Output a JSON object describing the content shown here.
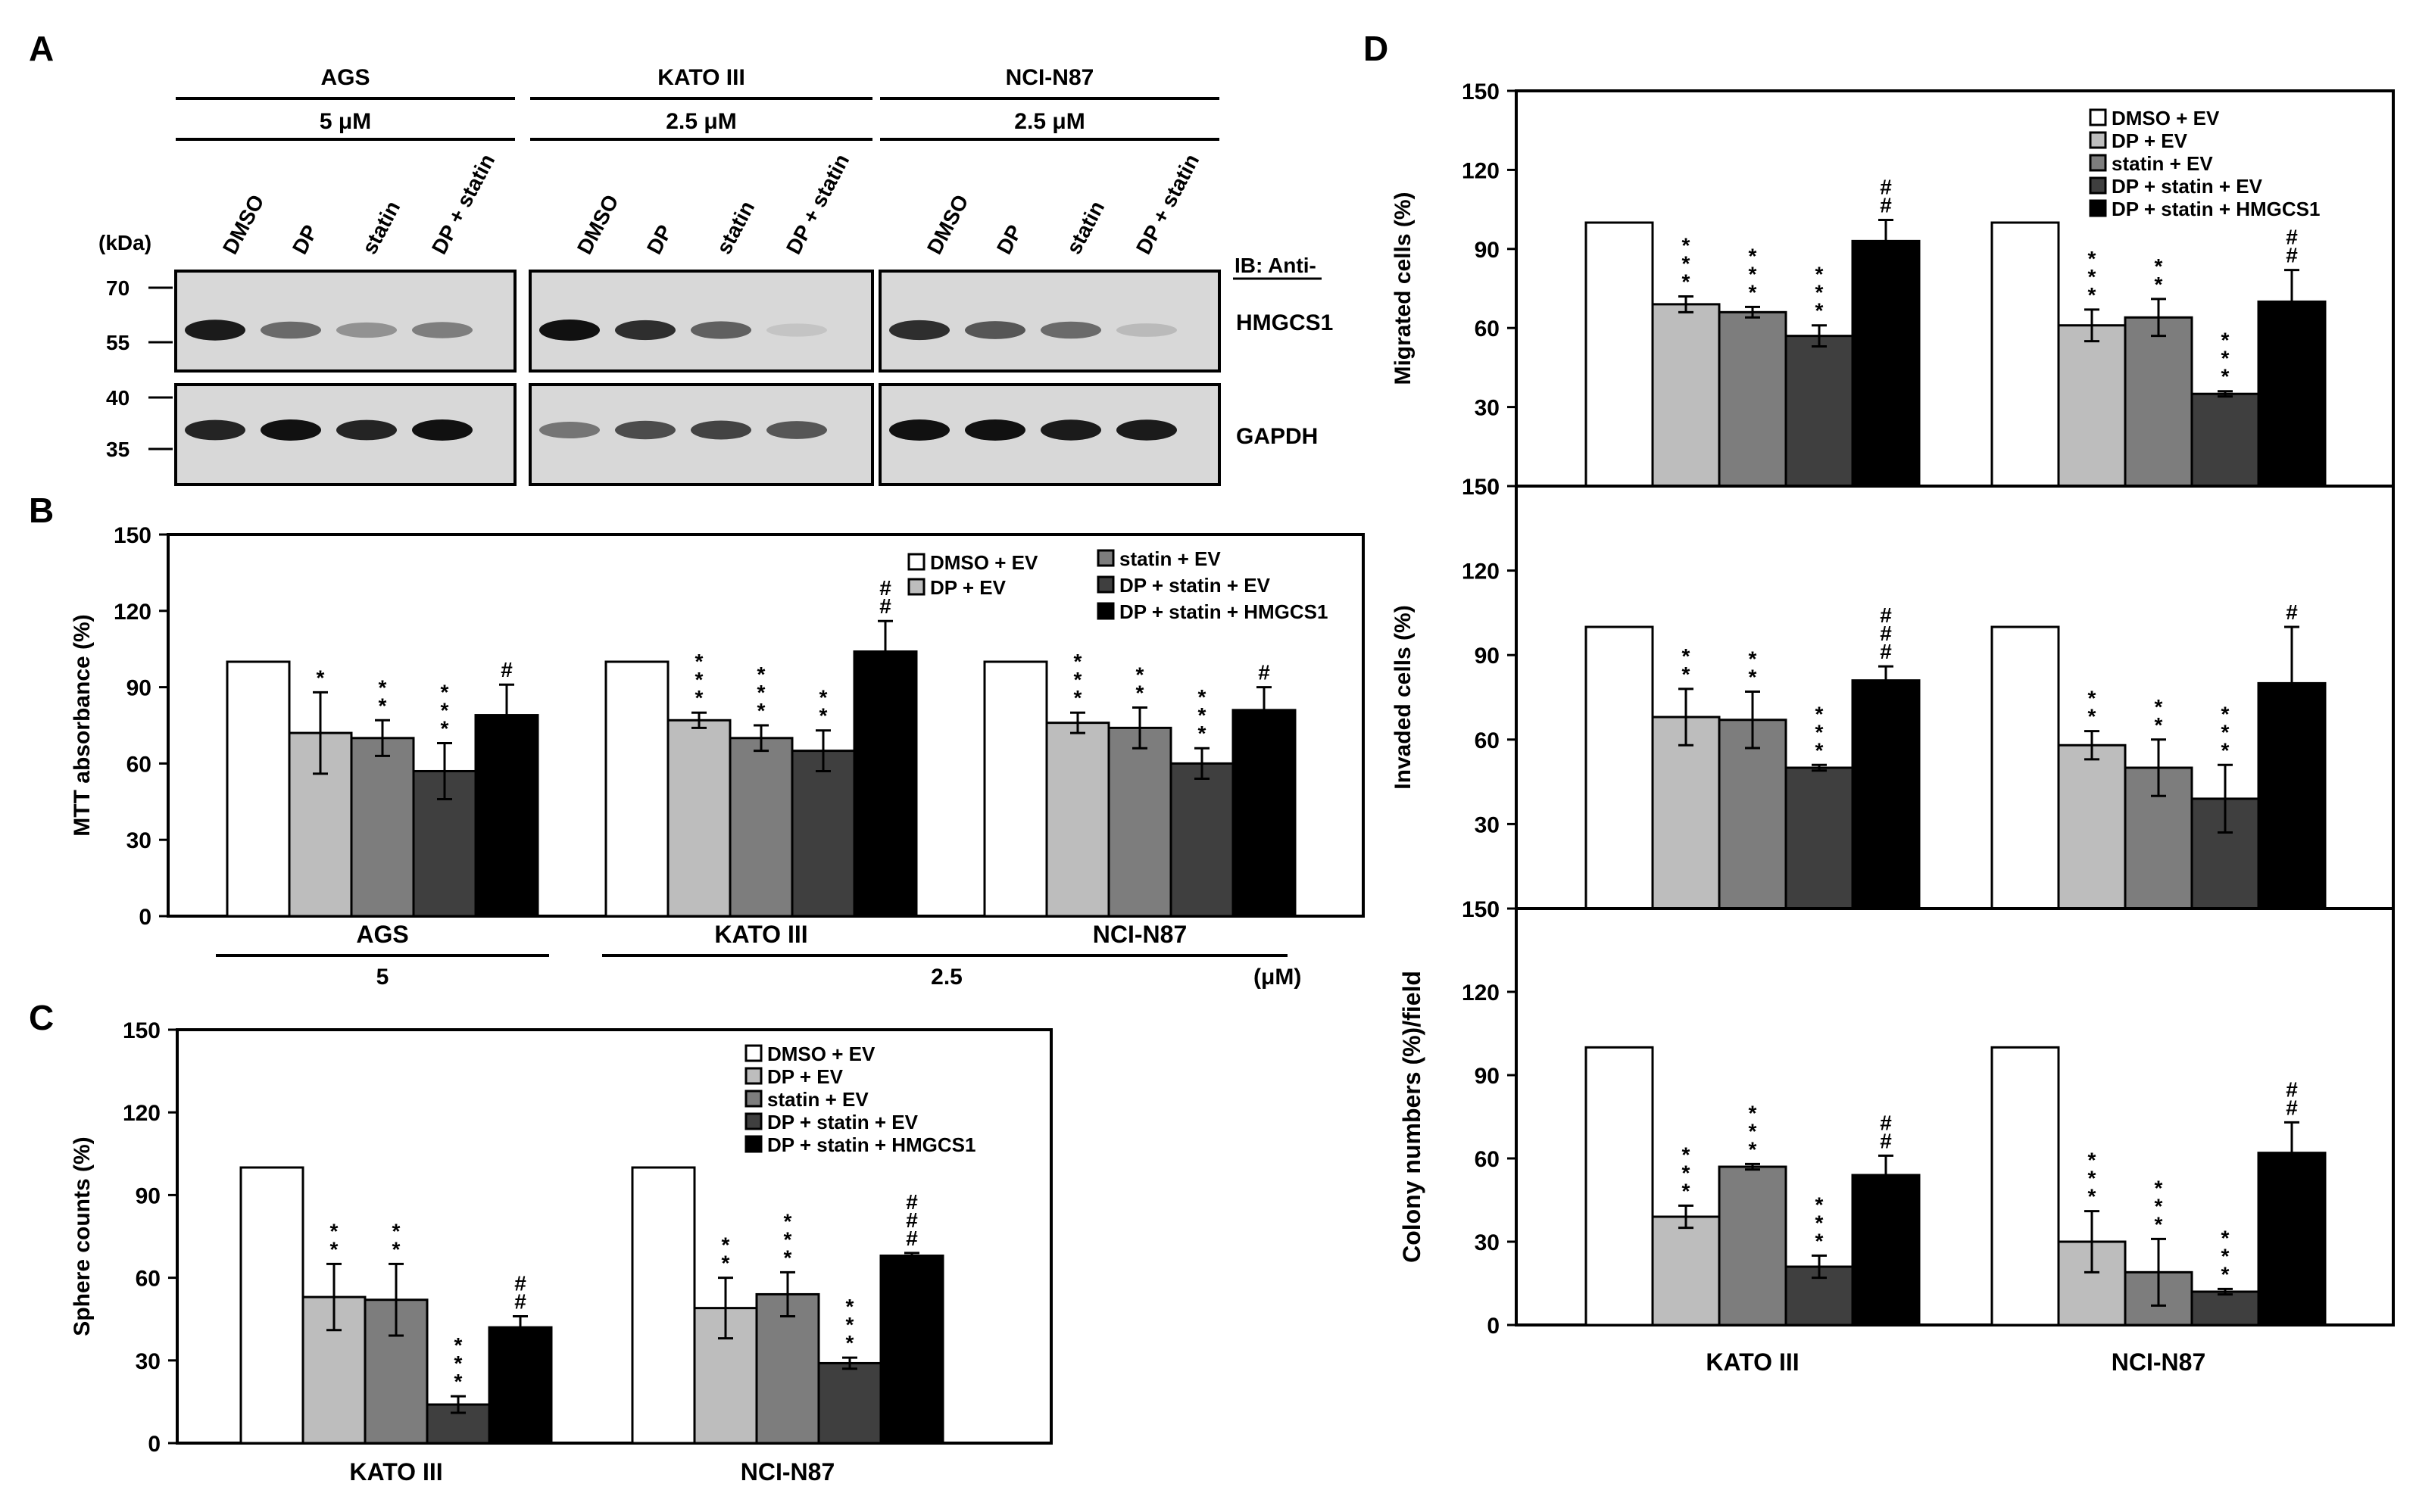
{
  "palette": {
    "DMSO + EV": "#ffffff",
    "DP + EV": "#bdbdbd",
    "statin + EV": "#7d7d7d",
    "DP + statin + EV": "#3f3f3f",
    "DP + statin + HMGCS1": "#000000"
  },
  "panel_a": {
    "letter": "A",
    "kda_label": "(kDa)",
    "ib_label": "IB: Anti-",
    "groups": [
      {
        "name": "AGS",
        "dose": "5 μM"
      },
      {
        "name": "KATO III",
        "dose": "2.5 μM"
      },
      {
        "name": "NCI-N87",
        "dose": "2.5 μM"
      }
    ],
    "lanes": [
      "DMSO",
      "DP",
      "statin",
      "DP + statin"
    ],
    "blots": [
      {
        "protein": "HMGCS1",
        "markers": [
          "70",
          "55"
        ],
        "intensity": [
          [
            0.95,
            0.55,
            0.35,
            0.45
          ],
          [
            1.0,
            0.85,
            0.6,
            0.1
          ],
          [
            0.85,
            0.65,
            0.55,
            0.15
          ]
        ]
      },
      {
        "protein": "GAPDH",
        "markers": [
          "40",
          "35"
        ],
        "intensity": [
          [
            0.9,
            1.0,
            0.9,
            1.0
          ],
          [
            0.5,
            0.7,
            0.75,
            0.65
          ],
          [
            1.0,
            1.0,
            0.95,
            0.95
          ]
        ]
      }
    ]
  },
  "chart_data": [
    {
      "panel": "B",
      "type": "bar",
      "ylabel": "MTT absorbance (%)",
      "ylim": [
        0,
        150
      ],
      "yticks": [
        0,
        30,
        60,
        90,
        120,
        150
      ],
      "categories": [
        "AGS",
        "KATO III",
        "NCI-N87"
      ],
      "group_underlines": [
        {
          "label": "5",
          "groups": [
            0
          ]
        },
        {
          "label": "2.5",
          "groups": [
            1,
            2
          ]
        }
      ],
      "unit_label": "(μM)",
      "legend": [
        "DMSO + EV",
        "DP + EV",
        "statin + EV",
        "DP + statin + EV",
        "DP + statin + HMGCS1"
      ],
      "series": [
        {
          "name": "DMSO + EV",
          "values": [
            100,
            100,
            100
          ],
          "errors": [
            0,
            0,
            0
          ],
          "sig": [
            "",
            "",
            ""
          ]
        },
        {
          "name": "DP + EV",
          "values": [
            72,
            77,
            76
          ],
          "errors": [
            16,
            3,
            4
          ],
          "sig": [
            "*",
            "***",
            "***"
          ]
        },
        {
          "name": "statin + EV",
          "values": [
            70,
            70,
            74
          ],
          "errors": [
            7,
            5,
            8
          ],
          "sig": [
            "**",
            "***",
            "**"
          ]
        },
        {
          "name": "DP + statin + EV",
          "values": [
            57,
            65,
            60
          ],
          "errors": [
            11,
            8,
            6
          ],
          "sig": [
            "***",
            "**",
            "***"
          ]
        },
        {
          "name": "DP + statin + HMGCS1",
          "values": [
            79,
            104,
            81
          ],
          "errors": [
            12,
            12,
            9
          ],
          "sig": [
            "#",
            "##",
            "#"
          ]
        }
      ]
    },
    {
      "panel": "C",
      "type": "bar",
      "ylabel": "Sphere counts (%)",
      "ylim": [
        0,
        150
      ],
      "yticks": [
        0,
        30,
        60,
        90,
        120,
        150
      ],
      "categories": [
        "KATO III",
        "NCI-N87"
      ],
      "legend": [
        "DMSO + EV",
        "DP + EV",
        "statin + EV",
        "DP + statin + EV",
        "DP + statin + HMGCS1"
      ],
      "series": [
        {
          "name": "DMSO + EV",
          "values": [
            100,
            100
          ],
          "errors": [
            0,
            0
          ],
          "sig": [
            "",
            ""
          ]
        },
        {
          "name": "DP + EV",
          "values": [
            53,
            49
          ],
          "errors": [
            12,
            11
          ],
          "sig": [
            "**",
            "**"
          ]
        },
        {
          "name": "statin + EV",
          "values": [
            52,
            54
          ],
          "errors": [
            13,
            8
          ],
          "sig": [
            "**",
            "***"
          ]
        },
        {
          "name": "DP + statin + EV",
          "values": [
            14,
            29
          ],
          "errors": [
            3,
            2
          ],
          "sig": [
            "***",
            "***"
          ]
        },
        {
          "name": "DP + statin + HMGCS1",
          "values": [
            42,
            68
          ],
          "errors": [
            4,
            1
          ],
          "sig": [
            "##",
            "###"
          ]
        }
      ]
    },
    {
      "panel": "D",
      "type": "bar",
      "ylabel": "Migrated cells (%)",
      "ylim": [
        0,
        150
      ],
      "yticks": [
        0,
        30,
        60,
        90,
        120,
        150
      ],
      "categories": [
        "KATO III",
        "NCI-N87"
      ],
      "legend": [
        "DMSO + EV",
        "DP + EV",
        "statin + EV",
        "DP + statin + EV",
        "DP + statin + HMGCS1"
      ],
      "series": [
        {
          "name": "DMSO + EV",
          "values": [
            100,
            100
          ],
          "errors": [
            0,
            0
          ],
          "sig": [
            "",
            ""
          ]
        },
        {
          "name": "DP + EV",
          "values": [
            69,
            61
          ],
          "errors": [
            3,
            6
          ],
          "sig": [
            "***",
            "***"
          ]
        },
        {
          "name": "statin + EV",
          "values": [
            66,
            64
          ],
          "errors": [
            2,
            7
          ],
          "sig": [
            "***",
            "**"
          ]
        },
        {
          "name": "DP + statin + EV",
          "values": [
            57,
            35
          ],
          "errors": [
            4,
            1
          ],
          "sig": [
            "***",
            "***"
          ]
        },
        {
          "name": "DP + statin + HMGCS1",
          "values": [
            93,
            70
          ],
          "errors": [
            8,
            12
          ],
          "sig": [
            "##",
            "##"
          ]
        }
      ]
    },
    {
      "panel": "D",
      "type": "bar",
      "ylabel": "Invaded cells (%)",
      "ylim": [
        0,
        150
      ],
      "yticks": [
        0,
        30,
        60,
        90,
        120,
        150
      ],
      "categories": [
        "KATO III",
        "NCI-N87"
      ],
      "series": [
        {
          "name": "DMSO + EV",
          "values": [
            100,
            100
          ],
          "errors": [
            0,
            0
          ],
          "sig": [
            "",
            ""
          ]
        },
        {
          "name": "DP + EV",
          "values": [
            68,
            58
          ],
          "errors": [
            10,
            5
          ],
          "sig": [
            "**",
            "**"
          ]
        },
        {
          "name": "statin + EV",
          "values": [
            67,
            50
          ],
          "errors": [
            10,
            10
          ],
          "sig": [
            "**",
            "**"
          ]
        },
        {
          "name": "DP + statin + EV",
          "values": [
            50,
            39
          ],
          "errors": [
            1,
            12
          ],
          "sig": [
            "***",
            "***"
          ]
        },
        {
          "name": "DP + statin + HMGCS1",
          "values": [
            81,
            80
          ],
          "errors": [
            5,
            20
          ],
          "sig": [
            "###",
            "#"
          ]
        }
      ]
    },
    {
      "panel": "D",
      "type": "bar",
      "ylabel": "Colony numbers (%)/field",
      "ylim": [
        0,
        150
      ],
      "yticks": [
        0,
        30,
        60,
        90,
        120,
        150
      ],
      "categories": [
        "KATO III",
        "NCI-N87"
      ],
      "series": [
        {
          "name": "DMSO + EV",
          "values": [
            100,
            100
          ],
          "errors": [
            0,
            0
          ],
          "sig": [
            "",
            ""
          ]
        },
        {
          "name": "DP + EV",
          "values": [
            39,
            30
          ],
          "errors": [
            4,
            11
          ],
          "sig": [
            "***",
            "***"
          ]
        },
        {
          "name": "statin + EV",
          "values": [
            57,
            19
          ],
          "errors": [
            1,
            12
          ],
          "sig": [
            "***",
            "***"
          ]
        },
        {
          "name": "DP + statin + EV",
          "values": [
            21,
            12
          ],
          "errors": [
            4,
            1
          ],
          "sig": [
            "***",
            "***"
          ]
        },
        {
          "name": "DP + statin + HMGCS1",
          "values": [
            54,
            62
          ],
          "errors": [
            7,
            11
          ],
          "sig": [
            "##",
            "##"
          ]
        }
      ]
    }
  ]
}
